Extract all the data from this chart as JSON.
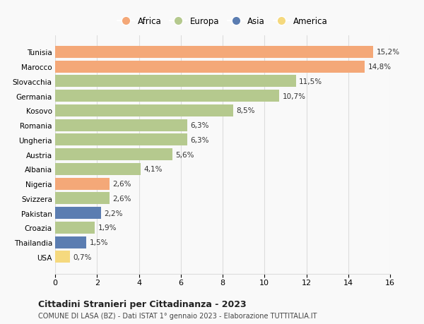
{
  "countries": [
    "Tunisia",
    "Marocco",
    "Slovacchia",
    "Germania",
    "Kosovo",
    "Romania",
    "Ungheria",
    "Austria",
    "Albania",
    "Nigeria",
    "Svizzera",
    "Pakistan",
    "Croazia",
    "Thailandia",
    "USA"
  ],
  "values": [
    15.2,
    14.8,
    11.5,
    10.7,
    8.5,
    6.3,
    6.3,
    5.6,
    4.1,
    2.6,
    2.6,
    2.2,
    1.9,
    1.5,
    0.7
  ],
  "labels": [
    "15,2%",
    "14,8%",
    "11,5%",
    "10,7%",
    "8,5%",
    "6,3%",
    "6,3%",
    "5,6%",
    "4,1%",
    "2,6%",
    "2,6%",
    "2,2%",
    "1,9%",
    "1,5%",
    "0,7%"
  ],
  "continents": [
    "Africa",
    "Africa",
    "Europa",
    "Europa",
    "Europa",
    "Europa",
    "Europa",
    "Europa",
    "Europa",
    "Africa",
    "Europa",
    "Asia",
    "Europa",
    "Asia",
    "America"
  ],
  "colors": {
    "Africa": "#F4A878",
    "Europa": "#B5C98E",
    "Asia": "#5B7DB1",
    "America": "#F5D97E"
  },
  "legend_order": [
    "Africa",
    "Europa",
    "Asia",
    "America"
  ],
  "title": "Cittadini Stranieri per Cittadinanza - 2023",
  "subtitle": "COMUNE DI LASA (BZ) - Dati ISTAT 1° gennaio 2023 - Elaborazione TUTTITALIA.IT",
  "xlim": [
    0,
    16
  ],
  "xticks": [
    0,
    2,
    4,
    6,
    8,
    10,
    12,
    14,
    16
  ],
  "background_color": "#f9f9f9",
  "grid_color": "#dddddd"
}
